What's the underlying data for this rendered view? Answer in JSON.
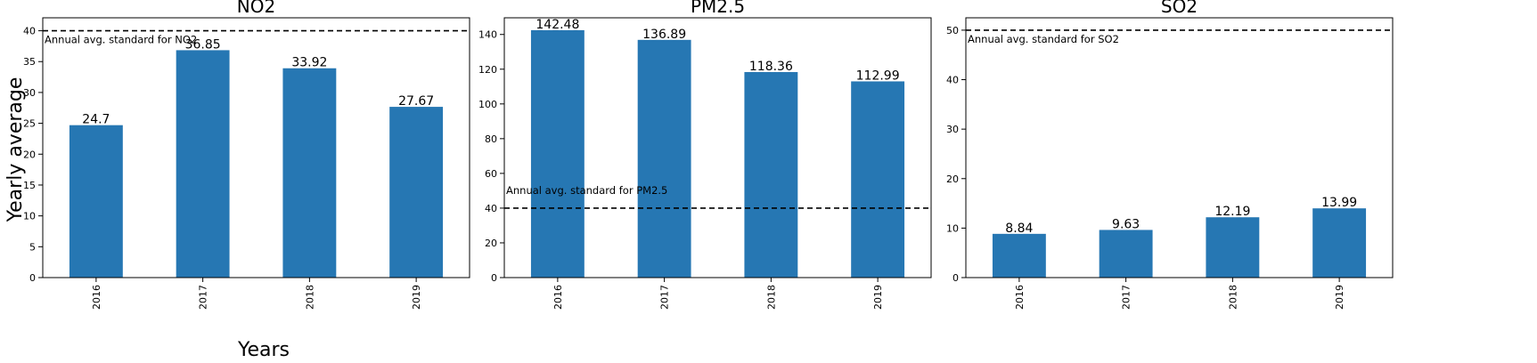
{
  "figure": {
    "shared_ylabel": "Yearly average",
    "shared_xlabel": "Years"
  },
  "colors": {
    "bar": "#2677b3",
    "axis": "#000000",
    "background": "#ffffff"
  },
  "chart_data": [
    {
      "type": "bar",
      "title": "NO2",
      "categories": [
        "2016",
        "2017",
        "2018",
        "2019"
      ],
      "values": [
        24.7,
        36.85,
        33.92,
        27.67
      ],
      "value_labels": [
        "24.7",
        "36.85",
        "33.92",
        "27.67"
      ],
      "ylim": [
        0,
        42.1
      ],
      "yticks": [
        0,
        5,
        10,
        15,
        20,
        25,
        30,
        35,
        40
      ],
      "reference_line": {
        "value": 40,
        "label": "Annual avg. standard for NO2",
        "style": "dashed"
      },
      "grid": false,
      "legend": "none"
    },
    {
      "type": "bar",
      "title": "PM2.5",
      "categories": [
        "2016",
        "2017",
        "2018",
        "2019"
      ],
      "values": [
        142.48,
        136.89,
        118.36,
        112.99
      ],
      "value_labels": [
        "142.48",
        "136.89",
        "118.36",
        "112.99"
      ],
      "ylim": [
        0,
        149.6
      ],
      "yticks": [
        0,
        20,
        40,
        60,
        80,
        100,
        120,
        140
      ],
      "reference_line": {
        "value": 40,
        "label": "Annual avg. standard for PM2.5",
        "style": "dashed"
      },
      "grid": false,
      "legend": "none"
    },
    {
      "type": "bar",
      "title": "SO2",
      "categories": [
        "2016",
        "2017",
        "2018",
        "2019"
      ],
      "values": [
        8.84,
        9.63,
        12.19,
        13.99
      ],
      "value_labels": [
        "8.84",
        "9.63",
        "12.19",
        "13.99"
      ],
      "ylim": [
        0,
        52.5
      ],
      "yticks": [
        0,
        10,
        20,
        30,
        40,
        50
      ],
      "reference_line": {
        "value": 50,
        "label": "Annual avg. standard for SO2",
        "style": "dashed"
      },
      "grid": false,
      "legend": "none"
    }
  ]
}
